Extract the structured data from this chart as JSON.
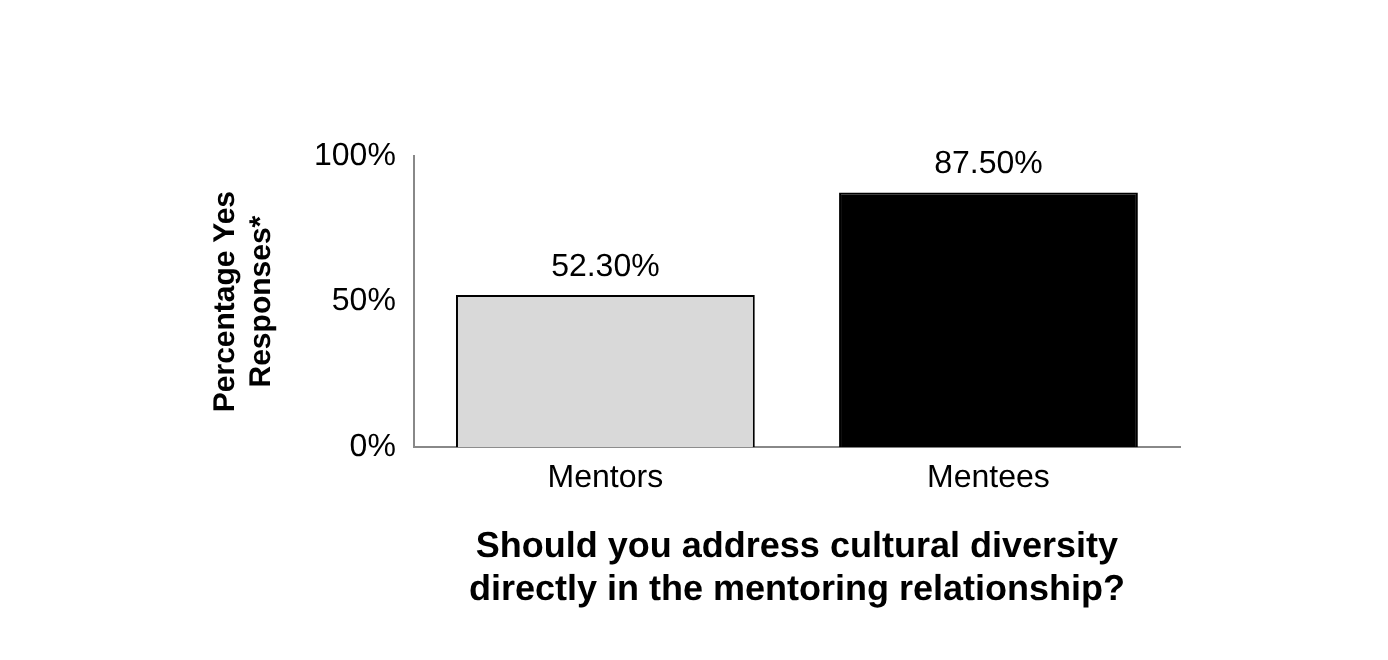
{
  "chart_data": {
    "type": "bar",
    "xlabel": "Should you address cultural diversity\ndirectly in the mentoring relationship?",
    "ylabel": "Percentage Yes\nResponses*",
    "categories": [
      "Mentors",
      "Mentees"
    ],
    "values": [
      52.3,
      87.5
    ],
    "colors": [
      "#d9d9d9",
      "#000000"
    ],
    "value_labels": [
      "52.30%",
      "87.50%"
    ],
    "ylim": [
      0,
      100
    ],
    "yticks": [
      {
        "value": 0,
        "label": "0%"
      },
      {
        "value": 50,
        "label": "50%"
      },
      {
        "value": 100,
        "label": "100%"
      }
    ],
    "grid": false,
    "legend": false
  }
}
